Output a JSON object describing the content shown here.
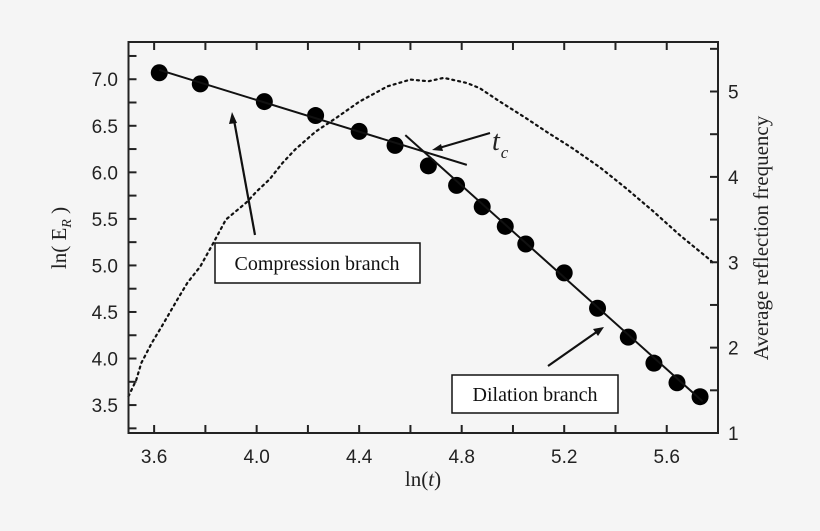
{
  "chart_data": {
    "type": "scatter",
    "xlabel": "ln(t)",
    "ylabel": "ln( E_R )",
    "ylabel_main": "ln( E",
    "ylabel_sub": "R",
    "ylabel_close": " )",
    "y2label": "Average reflection frequency",
    "xlim": [
      3.5,
      5.8
    ],
    "ylim": [
      3.2,
      7.4
    ],
    "y2lim": [
      1,
      5.58
    ],
    "xticks": [
      "3.6",
      "4.0",
      "4.4",
      "4.8",
      "5.2",
      "5.6"
    ],
    "yticks": [
      "3.5",
      "4.0",
      "4.5",
      "5.0",
      "5.5",
      "6.0",
      "6.5",
      "7.0"
    ],
    "y2ticks": [
      "1",
      "2",
      "3",
      "4",
      "5"
    ],
    "grid": false,
    "series": [
      {
        "kind": "scatter",
        "axis": "left",
        "x": [
          3.62,
          3.78,
          4.03,
          4.23,
          4.4,
          4.54,
          4.67,
          4.78,
          4.88,
          4.97,
          5.05,
          5.2,
          5.33,
          5.45,
          5.55,
          5.64,
          5.73
        ],
        "y": [
          7.07,
          6.95,
          6.76,
          6.61,
          6.44,
          6.29,
          6.07,
          5.86,
          5.63,
          5.42,
          5.23,
          4.92,
          4.54,
          4.23,
          3.95,
          3.74,
          3.59
        ]
      },
      {
        "kind": "fit-line",
        "axis": "left",
        "x": [
          3.62,
          4.82
        ],
        "y": [
          7.1,
          6.08
        ]
      },
      {
        "kind": "fit-line",
        "axis": "left",
        "x": [
          4.58,
          5.74
        ],
        "y": [
          6.4,
          3.54
        ]
      },
      {
        "kind": "dotted-line",
        "axis": "right",
        "x": [
          3.5,
          3.53,
          3.55,
          3.59,
          3.63,
          3.69,
          3.73,
          3.78,
          3.83,
          3.88,
          3.96,
          4.0,
          4.05,
          4.1,
          4.15,
          4.23,
          4.31,
          4.4,
          4.51,
          4.6,
          4.67,
          4.73,
          4.82,
          4.87,
          4.95,
          5.05,
          5.13,
          5.23,
          5.34,
          5.44,
          5.55,
          5.65,
          5.76,
          5.79
        ],
        "y": [
          1.43,
          1.62,
          1.82,
          2.05,
          2.25,
          2.56,
          2.76,
          2.95,
          3.22,
          3.5,
          3.7,
          3.83,
          3.97,
          4.16,
          4.32,
          4.53,
          4.69,
          4.88,
          5.06,
          5.14,
          5.12,
          5.16,
          5.1,
          5.04,
          4.88,
          4.69,
          4.53,
          4.34,
          4.11,
          3.87,
          3.59,
          3.32,
          3.05,
          2.97
        ]
      }
    ],
    "annotations": {
      "compression": "Compression branch",
      "dilation": "Dilation branch",
      "tc_main": "t",
      "tc_sub": "c"
    }
  }
}
